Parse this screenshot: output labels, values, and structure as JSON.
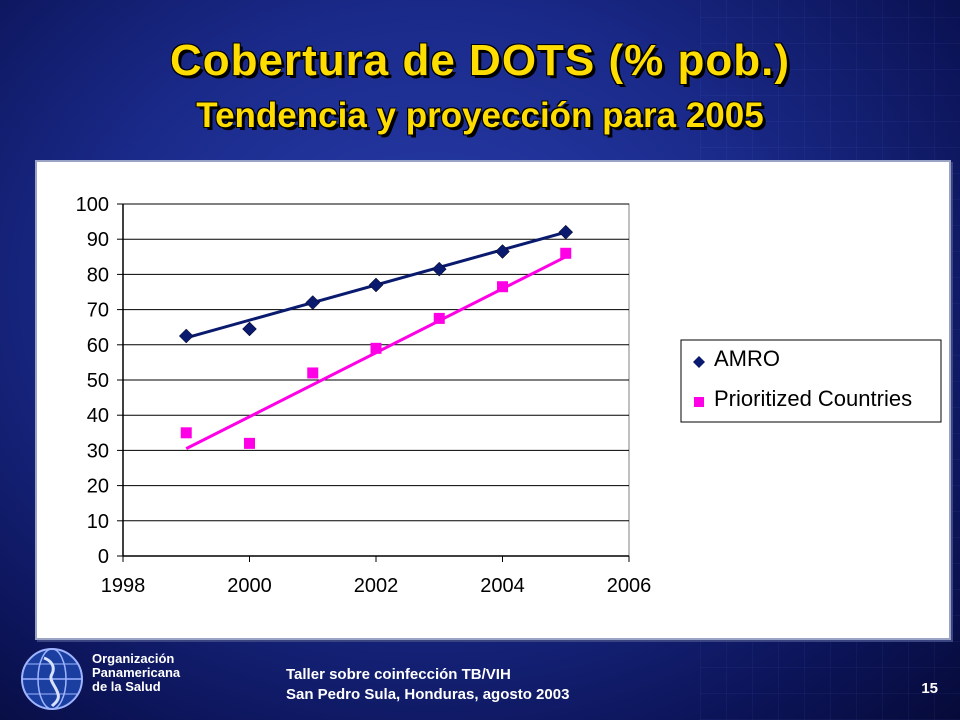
{
  "slide": {
    "title": "Cobertura de DOTS (% pob.)",
    "subtitle": "Tendencia y proyección para 2005",
    "page_number": "15"
  },
  "footer": {
    "org_line1": "Organización",
    "org_line2": "Panamericana",
    "org_line3": "de la Salud",
    "event_line1": "Taller sobre coinfección TB/VIH",
    "event_line2": "San Pedro Sula, Honduras, agosto 2003"
  },
  "colors": {
    "amro": "#0a1a6e",
    "prioritized": "#ff00e6",
    "title": "#ffdd00"
  },
  "chart_data": {
    "type": "scatter",
    "title": "",
    "xlabel": "",
    "ylabel": "",
    "xlim": [
      1998,
      2006
    ],
    "ylim": [
      0,
      100
    ],
    "x_ticks": [
      1998,
      2000,
      2002,
      2004,
      2006
    ],
    "y_ticks": [
      0,
      10,
      20,
      30,
      40,
      50,
      60,
      70,
      80,
      90,
      100
    ],
    "grid": "horizontal",
    "legend_position": "right",
    "series": [
      {
        "name": "AMRO",
        "marker": "diamond",
        "x": [
          1999,
          2000,
          2001,
          2002,
          2003,
          2004,
          2005
        ],
        "values": [
          62.5,
          64.5,
          72,
          77,
          81.5,
          86.5,
          92
        ],
        "trendline": {
          "x": [
            1999,
            2005
          ],
          "y": [
            62,
            92
          ]
        }
      },
      {
        "name": "Prioritized Countries",
        "marker": "square",
        "x": [
          1999,
          2000,
          2001,
          2002,
          2003,
          2004,
          2005
        ],
        "values": [
          35,
          32,
          52,
          59,
          67.5,
          76.5,
          86
        ],
        "trendline": {
          "x": [
            1999,
            2005
          ],
          "y": [
            30.5,
            85
          ]
        }
      }
    ]
  }
}
